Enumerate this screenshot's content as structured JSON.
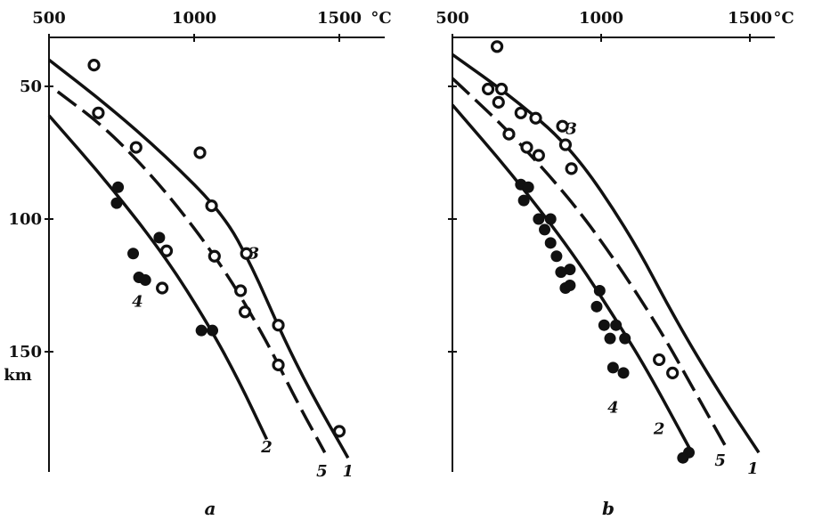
{
  "chart_data": [
    {
      "type": "scatter",
      "panel_label": "a",
      "xlabel": "°C",
      "ylabel": "km",
      "xlim": [
        500,
        1600
      ],
      "ylim": [
        30,
        195
      ],
      "x_ticks": [
        500,
        1000,
        1500
      ],
      "y_ticks": [
        50,
        100,
        150
      ],
      "x_axis_position": "top",
      "grid": false,
      "curves": [
        {
          "name": "1",
          "style": "solid",
          "points": [
            [
              500,
              40
            ],
            [
              700,
              57
            ],
            [
              900,
              76
            ],
            [
              1100,
              98
            ],
            [
              1200,
              118
            ],
            [
              1300,
              143
            ],
            [
              1400,
              165
            ],
            [
              1530,
              190
            ]
          ]
        },
        {
          "name": "5",
          "style": "dashed",
          "points": [
            [
              530,
              52
            ],
            [
              700,
              66
            ],
            [
              900,
              89
            ],
            [
              1100,
              118
            ],
            [
              1250,
              146
            ],
            [
              1350,
              168
            ],
            [
              1450,
              188
            ]
          ]
        },
        {
          "name": "2",
          "style": "solid",
          "points": [
            [
              500,
              61
            ],
            [
              700,
              86
            ],
            [
              900,
              114
            ],
            [
              1050,
              140
            ],
            [
              1150,
              160
            ],
            [
              1250,
              183
            ]
          ]
        }
      ],
      "series": [
        {
          "name": "3",
          "marker": "open-circle",
          "points": [
            [
              655,
              42
            ],
            [
              670,
              60
            ],
            [
              800,
              73
            ],
            [
              1020,
              75
            ],
            [
              1060,
              95
            ],
            [
              1070,
              114
            ],
            [
              1180,
              113
            ],
            [
              1160,
              127
            ],
            [
              1175,
              135
            ],
            [
              1290,
              140
            ],
            [
              1290,
              155
            ],
            [
              1500,
              180
            ],
            [
              905,
              112
            ],
            [
              890,
              126
            ]
          ]
        },
        {
          "name": "4",
          "marker": "filled-circle",
          "points": [
            [
              738,
              88
            ],
            [
              733,
              94
            ],
            [
              790,
              113
            ],
            [
              810,
              122
            ],
            [
              832,
              123
            ],
            [
              880,
              107
            ],
            [
              1025,
              142
            ],
            [
              1063,
              142
            ]
          ]
        }
      ],
      "annotations": [
        {
          "text": "3",
          "x": 1205,
          "y": 115
        },
        {
          "text": "4",
          "x": 805,
          "y": 133
        },
        {
          "text": "2",
          "x": 1250,
          "y": 188
        },
        {
          "text": "5",
          "x": 1440,
          "y": 197
        },
        {
          "text": "1",
          "x": 1530,
          "y": 197
        }
      ]
    },
    {
      "type": "scatter",
      "panel_label": "b",
      "xlabel": "°C",
      "ylabel": "",
      "xlim": [
        500,
        1600
      ],
      "ylim": [
        30,
        195
      ],
      "x_ticks": [
        500,
        1000,
        1500
      ],
      "y_ticks": [
        50,
        100,
        150
      ],
      "x_axis_position": "top",
      "grid": false,
      "curves": [
        {
          "name": "1",
          "style": "solid",
          "points": [
            [
              500,
              38
            ],
            [
              700,
              54
            ],
            [
              900,
              73
            ],
            [
              1100,
              106
            ],
            [
              1250,
              138
            ],
            [
              1400,
              166
            ],
            [
              1530,
              188
            ]
          ]
        },
        {
          "name": "5",
          "style": "dashed",
          "points": [
            [
              500,
              47
            ],
            [
              700,
              68
            ],
            [
              900,
              93
            ],
            [
              1050,
              116
            ],
            [
              1200,
              142
            ],
            [
              1320,
              166
            ],
            [
              1420,
              186
            ]
          ]
        },
        {
          "name": "2",
          "style": "solid",
          "points": [
            [
              500,
              57
            ],
            [
              700,
              83
            ],
            [
              900,
              112
            ],
            [
              1050,
              138
            ],
            [
              1150,
              156
            ],
            [
              1300,
              187
            ]
          ]
        }
      ],
      "series": [
        {
          "name": "3",
          "marker": "open-circle",
          "points": [
            [
              650,
              35
            ],
            [
              620,
              51
            ],
            [
              655,
              56
            ],
            [
              665,
              51
            ],
            [
              690,
              68
            ],
            [
              730,
              60
            ],
            [
              750,
              73
            ],
            [
              780,
              62
            ],
            [
              790,
              76
            ],
            [
              870,
              65
            ],
            [
              880,
              72
            ],
            [
              900,
              81
            ],
            [
              1195,
              153
            ],
            [
              1240,
              158
            ]
          ]
        },
        {
          "name": "4",
          "marker": "filled-circle",
          "points": [
            [
              730,
              87
            ],
            [
              755,
              88
            ],
            [
              740,
              93
            ],
            [
              790,
              100
            ],
            [
              810,
              104
            ],
            [
              830,
              100
            ],
            [
              830,
              109
            ],
            [
              850,
              114
            ],
            [
              865,
              120
            ],
            [
              880,
              126
            ],
            [
              895,
              119
            ],
            [
              895,
              125
            ],
            [
              985,
              133
            ],
            [
              995,
              127
            ],
            [
              1010,
              140
            ],
            [
              1030,
              145
            ],
            [
              1050,
              140
            ],
            [
              1080,
              145
            ],
            [
              1040,
              156
            ],
            [
              1075,
              158
            ],
            [
              1295,
              188
            ],
            [
              1275,
              190
            ]
          ]
        }
      ],
      "annotations": [
        {
          "text": "3",
          "x": 900,
          "y": 68
        },
        {
          "text": "4",
          "x": 1040,
          "y": 173
        },
        {
          "text": "2",
          "x": 1195,
          "y": 181
        },
        {
          "text": "5",
          "x": 1400,
          "y": 193
        },
        {
          "text": "1",
          "x": 1510,
          "y": 196
        }
      ]
    }
  ]
}
